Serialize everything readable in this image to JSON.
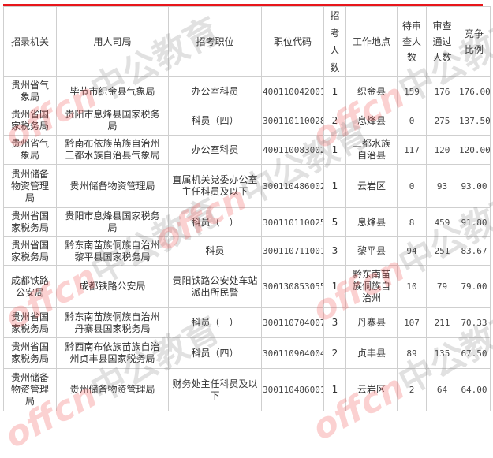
{
  "watermark": {
    "en": "offcn",
    "cn": "中公教育"
  },
  "colors": {
    "accent_line": "#e8161b",
    "border": "#cfcfcf"
  },
  "headers": [
    "招录机关",
    "用人司局",
    "招考职位",
    "职位代码",
    "招考人数",
    "工作地点",
    "待审查人数",
    "审查通过人数",
    "竞争比例"
  ],
  "rows": [
    [
      "贵州省气象局",
      "毕节市织金县气象局",
      "办公室科员",
      "400110042001",
      "1",
      "织金县",
      "159",
      "176",
      "176.00"
    ],
    [
      "贵州省国家税务局",
      "贵阳市息烽县国家税务局",
      "科员（四）",
      "300110110028",
      "2",
      "息烽县",
      "0",
      "275",
      "137.50"
    ],
    [
      "贵州省气象局",
      "黔南布依族苗族自治州三都水族自治县气象局",
      "办公室科员",
      "400110083002",
      "1",
      "三都水族自治县",
      "117",
      "120",
      "120.00"
    ],
    [
      "贵州储备物资管理局",
      "贵州储备物资管理局",
      "直属机关党委办公室主任科员及以下",
      "300110486002",
      "1",
      "云岩区",
      "0",
      "93",
      "93.00"
    ],
    [
      "贵州省国家税务局",
      "贵阳市息烽县国家税务局",
      "科员（一）",
      "300110110025",
      "5",
      "息烽县",
      "8",
      "459",
      "91.80"
    ],
    [
      "贵州省国家税务局",
      "黔东南苗族侗族自治州黎平县国家税务局",
      "科员",
      "300110711001",
      "3",
      "黎平县",
      "94",
      "251",
      "83.67"
    ],
    [
      "成都铁路公安局",
      "成都铁路公安局",
      "贵阳铁路公安处车站派出所民警",
      "300130853055",
      "1",
      "黔东南苗族侗族自治州",
      "10",
      "79",
      "79.00"
    ],
    [
      "贵州省国家税务局",
      "黔东南苗族侗族自治州丹寨县国家税务局",
      "科员（一）",
      "300110704007",
      "3",
      "丹寨县",
      "107",
      "211",
      "70.33"
    ],
    [
      "贵州省国家税务局",
      "黔西南布依族苗族自治州贞丰县国家税务局",
      "科员（四）",
      "300110904004",
      "2",
      "贞丰县",
      "89",
      "135",
      "67.50"
    ],
    [
      "贵州储备物资管理局",
      "贵州储备物资管理局",
      "财务处主任科员及以下",
      "300110486001",
      "1",
      "云岩区",
      "2",
      "64",
      "64.00"
    ]
  ]
}
